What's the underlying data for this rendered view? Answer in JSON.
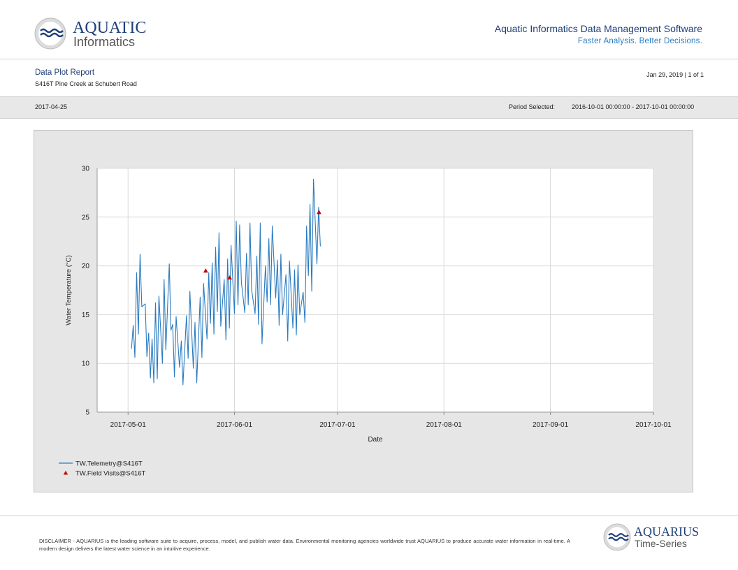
{
  "header": {
    "brand_line1": "AQUATIC",
    "brand_line2": "Informatics",
    "title": "Aquatic Informatics Data Management Software",
    "tagline": "Faster Analysis. Better Decisions."
  },
  "report": {
    "title": "Data Plot Report",
    "location": "S416T Pine Creek at Schubert Road",
    "date_page": "Jan 29, 2019 | 1 of 1"
  },
  "info_bar": {
    "date": "2017-04-25",
    "period_label": "Period Selected:",
    "period_value": "2016-10-01 00:00:00 - 2017-10-01 00:00:00"
  },
  "chart_data": {
    "type": "line",
    "xlabel": "Date",
    "ylabel": "Water Temperature (°C)",
    "x_range": [
      "2017-04-22",
      "2017-10-01"
    ],
    "ylim": [
      5,
      30
    ],
    "x_ticks": [
      "2017-05-01",
      "2017-06-01",
      "2017-07-01",
      "2017-08-01",
      "2017-09-01",
      "2017-10-01"
    ],
    "y_ticks": [
      5,
      10,
      15,
      20,
      25,
      30
    ],
    "grid": true,
    "legend_position": "bottom-left",
    "series": [
      {
        "name": "TW.Telemetry@S416T",
        "kind": "line",
        "color": "#2a7bc0",
        "points": [
          [
            "2017-05-02",
            11.5
          ],
          [
            "2017-05-02",
            13.9
          ],
          [
            "2017-05-03",
            10.6
          ],
          [
            "2017-05-03",
            19.3
          ],
          [
            "2017-05-04",
            13.0
          ],
          [
            "2017-05-04",
            21.2
          ],
          [
            "2017-05-05",
            15.8
          ],
          [
            "2017-05-06",
            16.1
          ],
          [
            "2017-05-06",
            10.7
          ],
          [
            "2017-05-07",
            13.1
          ],
          [
            "2017-05-07",
            8.5
          ],
          [
            "2017-05-08",
            12.5
          ],
          [
            "2017-05-08",
            8.0
          ],
          [
            "2017-05-09",
            16.2
          ],
          [
            "2017-05-09",
            8.4
          ],
          [
            "2017-05-10",
            16.9
          ],
          [
            "2017-05-11",
            10.0
          ],
          [
            "2017-05-11",
            18.6
          ],
          [
            "2017-05-12",
            11.4
          ],
          [
            "2017-05-13",
            20.2
          ],
          [
            "2017-05-13",
            13.4
          ],
          [
            "2017-05-14",
            14.0
          ],
          [
            "2017-05-14",
            8.6
          ],
          [
            "2017-05-15",
            14.8
          ],
          [
            "2017-05-16",
            9.6
          ],
          [
            "2017-05-16",
            12.3
          ],
          [
            "2017-05-17",
            7.8
          ],
          [
            "2017-05-18",
            14.9
          ],
          [
            "2017-05-18",
            10.5
          ],
          [
            "2017-05-19",
            17.4
          ],
          [
            "2017-05-20",
            9.5
          ],
          [
            "2017-05-20",
            14.2
          ],
          [
            "2017-05-21",
            8.0
          ],
          [
            "2017-05-22",
            16.8
          ],
          [
            "2017-05-22",
            10.6
          ],
          [
            "2017-05-23",
            18.2
          ],
          [
            "2017-05-24",
            12.5
          ],
          [
            "2017-05-24",
            19.3
          ],
          [
            "2017-05-25",
            14.1
          ],
          [
            "2017-05-25",
            20.3
          ],
          [
            "2017-05-26",
            13.0
          ],
          [
            "2017-05-26",
            21.9
          ],
          [
            "2017-05-27",
            15.3
          ],
          [
            "2017-05-27",
            23.4
          ],
          [
            "2017-05-28",
            13.8
          ],
          [
            "2017-05-29",
            18.6
          ],
          [
            "2017-05-29",
            12.4
          ],
          [
            "2017-05-30",
            20.7
          ],
          [
            "2017-05-30",
            13.6
          ],
          [
            "2017-05-31",
            22.1
          ],
          [
            "2017-06-01",
            15.1
          ],
          [
            "2017-06-01",
            24.6
          ],
          [
            "2017-06-02",
            16.0
          ],
          [
            "2017-06-02",
            24.2
          ],
          [
            "2017-06-03",
            18.3
          ],
          [
            "2017-06-04",
            15.2
          ],
          [
            "2017-06-04",
            21.3
          ],
          [
            "2017-06-05",
            16.0
          ],
          [
            "2017-06-05",
            24.4
          ],
          [
            "2017-06-06",
            17.5
          ],
          [
            "2017-06-07",
            15.1
          ],
          [
            "2017-06-07",
            21.0
          ],
          [
            "2017-06-08",
            14.0
          ],
          [
            "2017-06-08",
            24.4
          ],
          [
            "2017-06-09",
            12.0
          ],
          [
            "2017-06-10",
            20.0
          ],
          [
            "2017-06-10",
            16.3
          ],
          [
            "2017-06-11",
            22.8
          ],
          [
            "2017-06-11",
            16.0
          ],
          [
            "2017-06-12",
            24.1
          ],
          [
            "2017-06-13",
            16.7
          ],
          [
            "2017-06-13",
            20.6
          ],
          [
            "2017-06-14",
            13.9
          ],
          [
            "2017-06-14",
            21.2
          ],
          [
            "2017-06-15",
            15.0
          ],
          [
            "2017-06-16",
            19.1
          ],
          [
            "2017-06-16",
            12.3
          ],
          [
            "2017-06-17",
            20.5
          ],
          [
            "2017-06-18",
            13.6
          ],
          [
            "2017-06-18",
            19.6
          ],
          [
            "2017-06-19",
            12.9
          ],
          [
            "2017-06-19",
            20.1
          ],
          [
            "2017-06-20",
            15.0
          ],
          [
            "2017-06-21",
            17.3
          ],
          [
            "2017-06-21",
            14.2
          ],
          [
            "2017-06-22",
            24.1
          ],
          [
            "2017-06-22",
            19.0
          ],
          [
            "2017-06-23",
            26.3
          ],
          [
            "2017-06-23",
            17.4
          ],
          [
            "2017-06-24",
            28.9
          ],
          [
            "2017-06-25",
            20.2
          ],
          [
            "2017-06-25",
            26.0
          ],
          [
            "2017-06-26",
            22.0
          ]
        ]
      },
      {
        "name": "TW.Field Visits@S416T",
        "kind": "scatter",
        "color": "#cc0000",
        "points": [
          [
            "2017-05-23",
            19.5
          ],
          [
            "2017-05-30",
            18.8
          ],
          [
            "2017-06-25",
            25.5
          ]
        ]
      }
    ]
  },
  "footer": {
    "disclaimer": "DISCLAIMER - AQUARIUS is the leading software suite to acquire, process, model, and publish water data. Environmental monitoring agencies worldwide trust AQUARIUS to produce accurate water information in real-time. A modern design delivers the latest water science in an intuitive experience.",
    "brand_line1": "AQUARIUS",
    "brand_line2": "Time-Series"
  }
}
